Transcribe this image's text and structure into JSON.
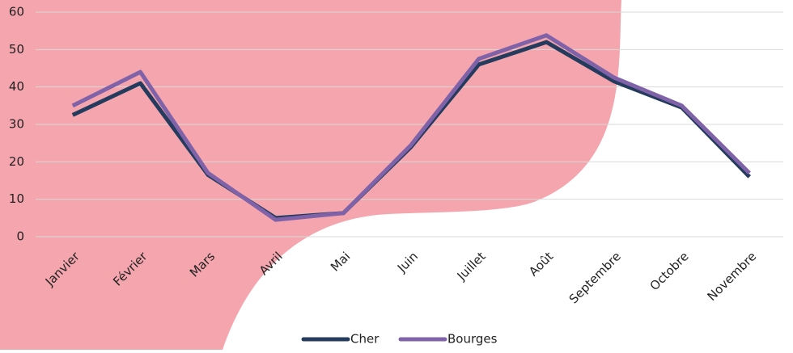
{
  "chart_data": {
    "type": "line",
    "categories": [
      "Janvier",
      "Février",
      "Mars",
      "Avril",
      "Mai",
      "Juin",
      "Juillet",
      "Août",
      "Septembre",
      "Octobre",
      "Novembre"
    ],
    "series": [
      {
        "name": "Cher",
        "color": "#243b5e",
        "values": [
          32.5,
          41,
          16.5,
          5,
          6.3,
          24,
          46,
          52,
          41.5,
          34.5,
          16
        ]
      },
      {
        "name": "Bourges",
        "color": "#7f62a8",
        "values": [
          35,
          44,
          17,
          4.5,
          6.3,
          24.5,
          47.5,
          53.8,
          42.5,
          35,
          17
        ]
      }
    ],
    "ylim": [
      0,
      60
    ],
    "yticks": [
      0,
      10,
      20,
      30,
      40,
      50,
      60
    ],
    "grid": true,
    "legend": "bottom"
  }
}
